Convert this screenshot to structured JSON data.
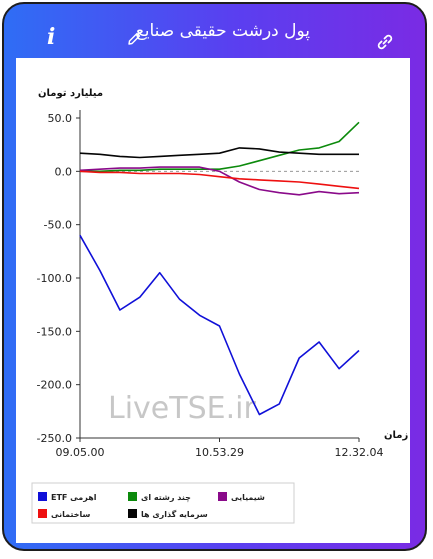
{
  "header": {
    "title": "پول درشت حقیقی صنایع",
    "info_icon": "i",
    "edit_icon": "pencil-icon",
    "link_icon": "link-icon"
  },
  "chart_data": {
    "type": "line",
    "ylabel": "میلیارد تومان",
    "xlabel": "زمان",
    "ylim": [
      -250,
      50
    ],
    "yticks": [
      "50.0",
      "0.0",
      "-50.0",
      "-100.0",
      "-150.0",
      "-200.0",
      "-250.0"
    ],
    "xticks": [
      "09.05.00",
      "10.53.29",
      "12.32.04"
    ],
    "watermark": "LiveTSE.ir",
    "x": [
      "09.05.00",
      "09.22.00",
      "09.40.00",
      "09.57.00",
      "10.15.00",
      "10.32.00",
      "10.46.00",
      "10.53.29",
      "11.05.00",
      "11.20.00",
      "11.35.00",
      "11.50.00",
      "12.05.00",
      "12.20.00",
      "12.32.04"
    ],
    "series": [
      {
        "name": "ETF اهرمی",
        "color": "#1010d8",
        "values": [
          -60,
          -93,
          -130,
          -118,
          -95,
          -120,
          -135,
          -145,
          -190,
          -228,
          -218,
          -175,
          -160,
          -185,
          -168
        ]
      },
      {
        "name": "چند رشته ای",
        "color": "#0c8a0c",
        "values": [
          0,
          0,
          1,
          1,
          2,
          2,
          2,
          2,
          5,
          10,
          15,
          20,
          22,
          28,
          46
        ]
      },
      {
        "name": "شیمیایی",
        "color": "#8a0a8a",
        "values": [
          1,
          2,
          3,
          3,
          4,
          4,
          4,
          0,
          -10,
          -17,
          -20,
          -22,
          -19,
          -21,
          -20
        ]
      },
      {
        "name": "ساختمانی",
        "color": "#ee1010",
        "values": [
          0,
          -1,
          -1,
          -2,
          -2,
          -2,
          -3,
          -5,
          -7,
          -8,
          -9,
          -10,
          -12,
          -14,
          -16
        ]
      },
      {
        "name": "سرمایه گذاری ها",
        "color": "#050505",
        "values": [
          17,
          16,
          14,
          13,
          14,
          15,
          16,
          17,
          22,
          21,
          18,
          17,
          16,
          16,
          16
        ]
      }
    ]
  },
  "legend": [
    {
      "label": "ETF اهرمی",
      "color": "#1010d8"
    },
    {
      "label": "چند رشته ای",
      "color": "#0c8a0c"
    },
    {
      "label": "شیمیایی",
      "color": "#8a0a8a"
    },
    {
      "label": "ساختمانی",
      "color": "#ee1010"
    },
    {
      "label": "سرمایه گذاری ها",
      "color": "#050505"
    }
  ]
}
